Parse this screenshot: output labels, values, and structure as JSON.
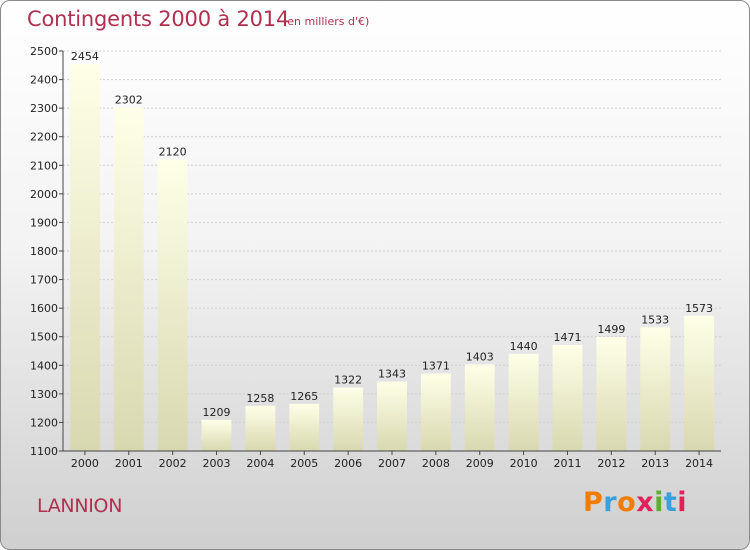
{
  "header": {
    "title": "Contingents 2000 à 2014",
    "unit": "(en milliers d'€)"
  },
  "footer": {
    "city": "LANNION",
    "brand_letters": [
      "P",
      "r",
      "o",
      "x",
      "i",
      "t",
      "i"
    ],
    "brand_colors": [
      "#f07d00",
      "#3aa0dc",
      "#f07d00",
      "#e0215b",
      "#5ab030",
      "#3aa0dc",
      "#e0215b"
    ]
  },
  "colors": {
    "title": "#b0304f",
    "bar_top": "#ffffe8",
    "bar_bottom": "#d8d8b0",
    "grid": "#cfcfcf"
  },
  "chart_data": {
    "type": "bar",
    "categories": [
      "2000",
      "2001",
      "2002",
      "2003",
      "2004",
      "2005",
      "2006",
      "2007",
      "2008",
      "2009",
      "2010",
      "2011",
      "2012",
      "2013",
      "2014"
    ],
    "values": [
      2454,
      2302,
      2120,
      1209,
      1258,
      1265,
      1322,
      1343,
      1371,
      1403,
      1440,
      1471,
      1499,
      1533,
      1573
    ],
    "yticks": [
      1100,
      1200,
      1300,
      1400,
      1500,
      1600,
      1700,
      1800,
      1900,
      2000,
      2100,
      2200,
      2300,
      2400,
      2500
    ],
    "ylim": [
      1100,
      2500
    ],
    "grid": true,
    "data_labels": true
  }
}
